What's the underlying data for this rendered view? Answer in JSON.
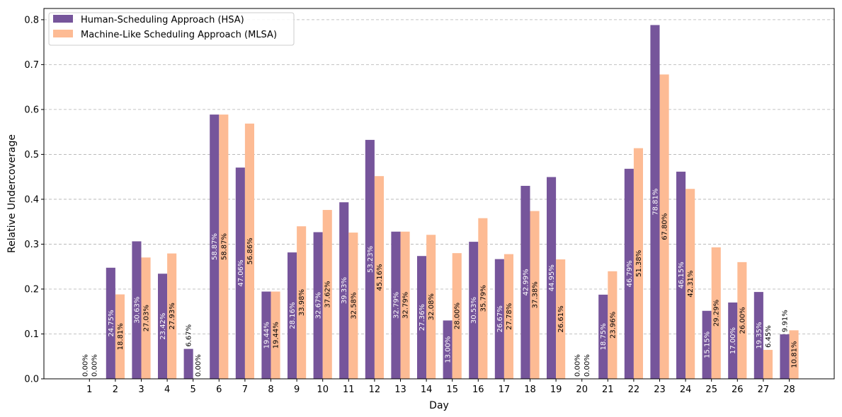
{
  "chart_data": {
    "type": "bar",
    "xlabel": "Day",
    "ylabel": "Relative Undercoverage",
    "ylim": [
      0,
      0.825
    ],
    "yticks": [
      0.0,
      0.1,
      0.2,
      0.3,
      0.4,
      0.5,
      0.6,
      0.7,
      0.8
    ],
    "ytick_labels": [
      "0.0",
      "0.1",
      "0.2",
      "0.3",
      "0.4",
      "0.5",
      "0.6",
      "0.7",
      "0.8"
    ],
    "grid": "horizontal-dashed",
    "legend_position": "top-left",
    "categories": [
      "1",
      "2",
      "3",
      "4",
      "5",
      "6",
      "7",
      "8",
      "9",
      "10",
      "11",
      "12",
      "13",
      "14",
      "15",
      "16",
      "17",
      "18",
      "19",
      "20",
      "21",
      "22",
      "23",
      "24",
      "25",
      "26",
      "27",
      "28"
    ],
    "series": [
      {
        "name": "Human-Scheduling Approach (HSA)",
        "color": "#76559b",
        "values": [
          0.0,
          0.2475,
          0.3063,
          0.2342,
          0.0667,
          0.5887,
          0.4706,
          0.1944,
          0.2816,
          0.3267,
          0.3933,
          0.5323,
          0.3279,
          0.2736,
          0.13,
          0.3053,
          0.2667,
          0.4299,
          0.4495,
          0.0,
          0.1875,
          0.4679,
          0.7881,
          0.4615,
          0.1515,
          0.17,
          0.1935,
          0.0991
        ],
        "labels": [
          "0.00%",
          "24.75%",
          "30.63%",
          "23.42%",
          "6.67%",
          "58.87%",
          "47.06%",
          "19.44%",
          "28.16%",
          "32.67%",
          "39.33%",
          "53.23%",
          "32.79%",
          "27.36%",
          "13.00%",
          "30.53%",
          "26.67%",
          "42.99%",
          "44.95%",
          "0.00%",
          "18.75%",
          "46.79%",
          "78.81%",
          "46.15%",
          "15.15%",
          "17.00%",
          "19.35%",
          "9.91%"
        ]
      },
      {
        "name": "Machine-Like Scheduling Approach (MLSA)",
        "color": "#fdbb94",
        "values": [
          0.0,
          0.1881,
          0.2703,
          0.2793,
          0.0,
          0.5887,
          0.5686,
          0.1944,
          0.3398,
          0.3762,
          0.3258,
          0.4516,
          0.3279,
          0.3208,
          0.28,
          0.3579,
          0.2778,
          0.3738,
          0.2661,
          0.0,
          0.2396,
          0.5138,
          0.678,
          0.4231,
          0.2929,
          0.26,
          0.0645,
          0.1081
        ],
        "labels": [
          "0.00%",
          "18.81%",
          "27.03%",
          "27.93%",
          "0.00%",
          "58.87%",
          "56.86%",
          "19.44%",
          "33.98%",
          "37.62%",
          "32.58%",
          "45.16%",
          "32.79%",
          "32.08%",
          "28.00%",
          "35.79%",
          "27.78%",
          "37.38%",
          "26.61%",
          "0.00%",
          "23.96%",
          "51.38%",
          "67.80%",
          "42.31%",
          "29.29%",
          "26.00%",
          "6.45%",
          "10.81%"
        ]
      }
    ]
  }
}
